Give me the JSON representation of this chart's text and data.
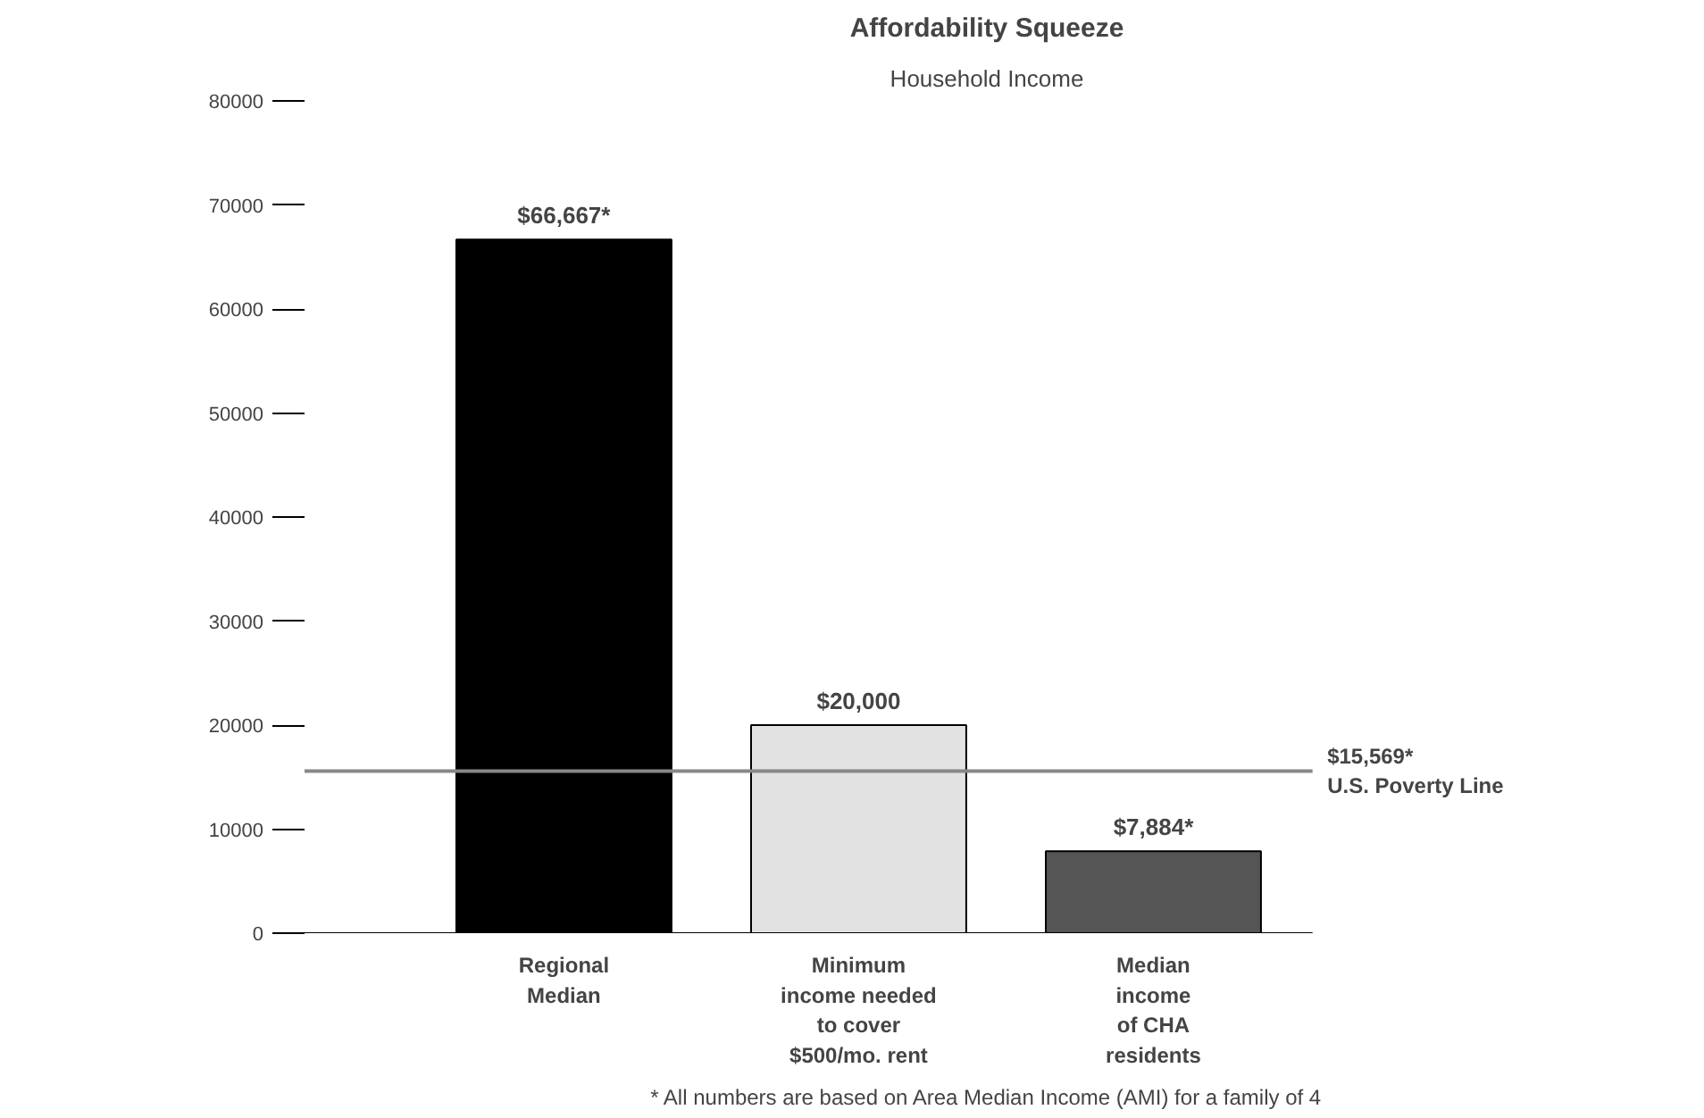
{
  "chart_data": {
    "type": "bar",
    "title": "Affordability Squeeze",
    "subtitle": "Household Income",
    "categories": [
      "Regional\nMedian",
      "Minimum\nincome needed\nto cover\n$500/mo. rent",
      "Median\nincome\nof CHA\nresidents"
    ],
    "values": [
      66667,
      20000,
      7884
    ],
    "colors": [
      "#000000",
      "#e2e2e2",
      "#555555"
    ],
    "value_labels": [
      "$66,667*",
      "$20,000",
      "$7,884*"
    ],
    "ylim": [
      0,
      80000
    ],
    "yticks": [
      0,
      10000,
      20000,
      30000,
      40000,
      50000,
      60000,
      70000,
      80000
    ],
    "grid": false,
    "ref_lines": [
      {
        "axis": "y",
        "value": 15569,
        "label": "$15,569*\nU.S. Poverty Line",
        "color": "#888888"
      }
    ],
    "annotations": [
      "* All numbers are based on Area Median Income (AMI) for a family of 4"
    ]
  }
}
